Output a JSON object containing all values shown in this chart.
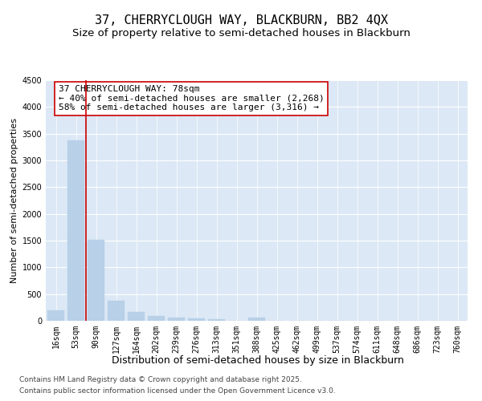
{
  "title": "37, CHERRYCLOUGH WAY, BLACKBURN, BB2 4QX",
  "subtitle": "Size of property relative to semi-detached houses in Blackburn",
  "xlabel": "Distribution of semi-detached houses by size in Blackburn",
  "ylabel": "Number of semi-detached properties",
  "categories": [
    "16sqm",
    "53sqm",
    "90sqm",
    "127sqm",
    "164sqm",
    "202sqm",
    "239sqm",
    "276sqm",
    "313sqm",
    "351sqm",
    "388sqm",
    "425sqm",
    "462sqm",
    "499sqm",
    "537sqm",
    "574sqm",
    "611sqm",
    "648sqm",
    "686sqm",
    "723sqm",
    "760sqm"
  ],
  "values": [
    200,
    3380,
    1510,
    370,
    170,
    95,
    55,
    40,
    35,
    0,
    55,
    0,
    0,
    0,
    0,
    0,
    0,
    0,
    0,
    0,
    0
  ],
  "bar_color": "#b8d0e8",
  "bar_edge_color": "#b8d0e8",
  "red_line_color": "#cc0000",
  "annotation_text": "37 CHERRYCLOUGH WAY: 78sqm\n← 40% of semi-detached houses are smaller (2,268)\n58% of semi-detached houses are larger (3,316) →",
  "annotation_box_edgecolor": "#cc0000",
  "ylim": [
    0,
    4500
  ],
  "yticks": [
    0,
    500,
    1000,
    1500,
    2000,
    2500,
    3000,
    3500,
    4000,
    4500
  ],
  "background_color": "#dce8f5",
  "footer_line1": "Contains HM Land Registry data © Crown copyright and database right 2025.",
  "footer_line2": "Contains public sector information licensed under the Open Government Licence v3.0.",
  "title_fontsize": 11,
  "subtitle_fontsize": 9.5,
  "xlabel_fontsize": 9,
  "ylabel_fontsize": 8,
  "tick_fontsize": 7,
  "annotation_fontsize": 8,
  "footer_fontsize": 6.5
}
